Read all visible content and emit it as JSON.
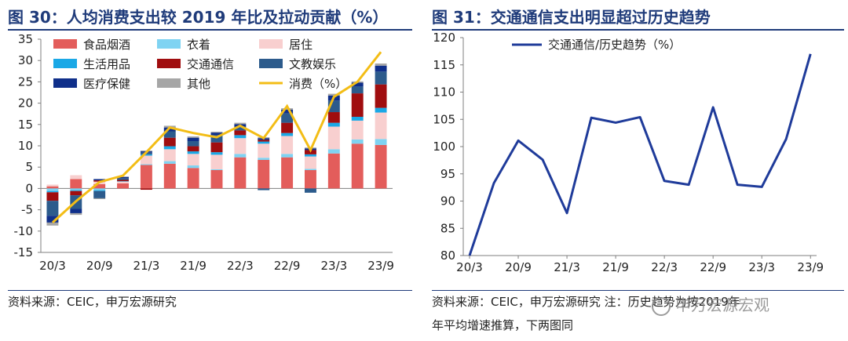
{
  "left": {
    "title": "图 30：人均消费支出较 2019 年比及拉动贡献（%）",
    "source": "资料来源：CEIC，申万宏源研究"
  },
  "right": {
    "title": "图 31：交通通信支出明显超过历史趋势",
    "source_line1": "资料来源：CEIC，申万宏源研究  注：历史趋势为按2019年",
    "source_line2": "年平均增速推算，下两图同"
  },
  "watermark": "申万宏源宏观",
  "colors": {
    "food": "#e35d5b",
    "clothing": "#7fd3f2",
    "housing": "#f8cfcf",
    "daily": "#1aa8e6",
    "transport": "#a00d0f",
    "education": "#2c5b8c",
    "medical": "#0f2f8a",
    "other": "#a6a6a6",
    "consumption": "#f3bd16",
    "trend": "#1f3b9a",
    "axis": "#7f7f7f",
    "title": "#1f3b7a"
  },
  "chart_data": [
    {
      "type": "bar",
      "stacked": true,
      "x": [
        "20/3",
        "20/6",
        "20/9",
        "20/12",
        "21/3",
        "21/6",
        "21/9",
        "21/12",
        "22/3",
        "22/6",
        "22/9",
        "22/12",
        "23/3",
        "23/6",
        "23/9"
      ],
      "x_tick_labels": [
        "20/3",
        "20/9",
        "21/3",
        "21/9",
        "22/3",
        "22/9",
        "23/3",
        "23/9"
      ],
      "ylim": [
        -15,
        35
      ],
      "yticks": [
        -15,
        -10,
        -5,
        0,
        5,
        10,
        15,
        20,
        25,
        30,
        35
      ],
      "legend_position": "top-left",
      "series": [
        {
          "name": "食品烟酒",
          "color_key": "food",
          "values": [
            0.5,
            2.2,
            1.0,
            1.2,
            5.5,
            5.8,
            4.8,
            4.3,
            7.3,
            6.7,
            7.3,
            4.3,
            8.2,
            10.5,
            10.2
          ]
        },
        {
          "name": "衣着",
          "color_key": "clothing",
          "values": [
            -0.6,
            -0.4,
            -0.4,
            0,
            0.2,
            0.6,
            0.6,
            0.2,
            0.8,
            0.5,
            0.8,
            0.3,
            1.0,
            1.0,
            1.4
          ]
        },
        {
          "name": "居住",
          "color_key": "housing",
          "values": [
            0.4,
            0.9,
            0.6,
            0.4,
            2.0,
            2.8,
            2.7,
            3.4,
            3.7,
            3.3,
            4.2,
            2.9,
            5.3,
            4.4,
            6.2
          ]
        },
        {
          "name": "生活用品",
          "color_key": "daily",
          "values": [
            -0.3,
            -0.2,
            -0.2,
            0.1,
            0.3,
            0.7,
            0.6,
            0.6,
            0.7,
            0.5,
            0.7,
            0.5,
            0.9,
            0.9,
            1.1
          ]
        },
        {
          "name": "交通通信",
          "color_key": "transport",
          "values": [
            -2.0,
            -1.0,
            0.3,
            0.3,
            -0.3,
            2.0,
            1.2,
            2.3,
            1.1,
            0.4,
            2.4,
            1.0,
            2.5,
            5.5,
            5.5
          ]
        },
        {
          "name": "文教娱乐",
          "color_key": "education",
          "values": [
            -3.5,
            -3.2,
            -1.7,
            0.4,
            0.4,
            1.5,
            1.2,
            1.7,
            0.9,
            -0.4,
            2.2,
            -1.0,
            2.7,
            1.6,
            3.0
          ]
        },
        {
          "name": "医疗保健",
          "color_key": "medical",
          "values": [
            -1.6,
            -1.0,
            0.3,
            0.3,
            0.3,
            0.9,
            0.8,
            0.6,
            0.6,
            0.4,
            0.9,
            0.4,
            1.2,
            0.9,
            1.4
          ]
        },
        {
          "name": "其他",
          "color_key": "other",
          "values": [
            -0.7,
            -0.4,
            -0.2,
            0.1,
            0.2,
            0.4,
            0.3,
            0.2,
            0.3,
            0.2,
            0.3,
            0.2,
            0.4,
            0.3,
            0.5
          ]
        }
      ],
      "line": {
        "name": "消费（%）",
        "color_key": "consumption",
        "values": [
          -8.0,
          -3.0,
          1.5,
          3.0,
          8.5,
          14.3,
          13.0,
          12.0,
          14.7,
          11.8,
          19.3,
          9.0,
          21.5,
          25.0,
          32.0
        ]
      }
    },
    {
      "type": "line",
      "x": [
        "20/3",
        "20/6",
        "20/9",
        "20/12",
        "21/3",
        "21/6",
        "21/9",
        "21/12",
        "22/3",
        "22/6",
        "22/9",
        "22/12",
        "23/3",
        "23/6",
        "23/9"
      ],
      "x_tick_labels": [
        "20/3",
        "20/9",
        "21/3",
        "21/9",
        "22/3",
        "22/9",
        "23/3",
        "23/9"
      ],
      "ylim": [
        80,
        120
      ],
      "yticks": [
        80,
        85,
        90,
        95,
        100,
        105,
        110,
        115,
        120
      ],
      "legend_position": "top-left",
      "series": [
        {
          "name": "交通通信/历史趋势（%）",
          "color_key": "trend",
          "values": [
            80.0,
            93.3,
            101.1,
            97.6,
            87.8,
            105.3,
            104.4,
            105.4,
            93.7,
            93.0,
            107.2,
            93.0,
            92.6,
            101.4,
            117.0
          ]
        }
      ]
    }
  ]
}
